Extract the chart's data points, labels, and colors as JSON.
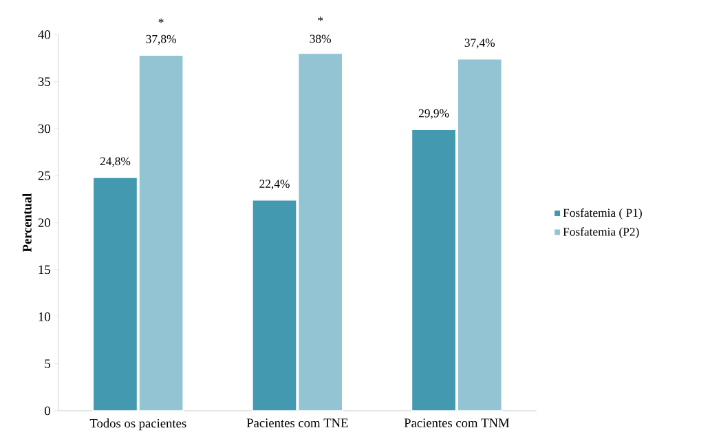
{
  "chart_data": {
    "type": "bar",
    "ylabel": "Percentual",
    "categories": [
      "Todos os pacientes",
      "Pacientes com TNE",
      "Pacientes com TNM"
    ],
    "series": [
      {
        "name": "Fosfatemia ( P1)",
        "color": "#4299b0",
        "values": [
          24.8,
          22.4,
          29.9
        ],
        "value_labels": [
          "24,8%",
          "22,4%",
          "29,9%"
        ]
      },
      {
        "name": "Fosfatemia (P2)",
        "color": "#93c4d4",
        "values": [
          37.8,
          38,
          37.4
        ],
        "value_labels": [
          "37,8%",
          "38%",
          "37,4%"
        ]
      }
    ],
    "ylim": [
      0,
      40
    ],
    "yticks": [
      0,
      5,
      10,
      15,
      20,
      25,
      30,
      35,
      40
    ],
    "annotations": [
      "*",
      "*"
    ],
    "legend": "right",
    "grid": false
  }
}
